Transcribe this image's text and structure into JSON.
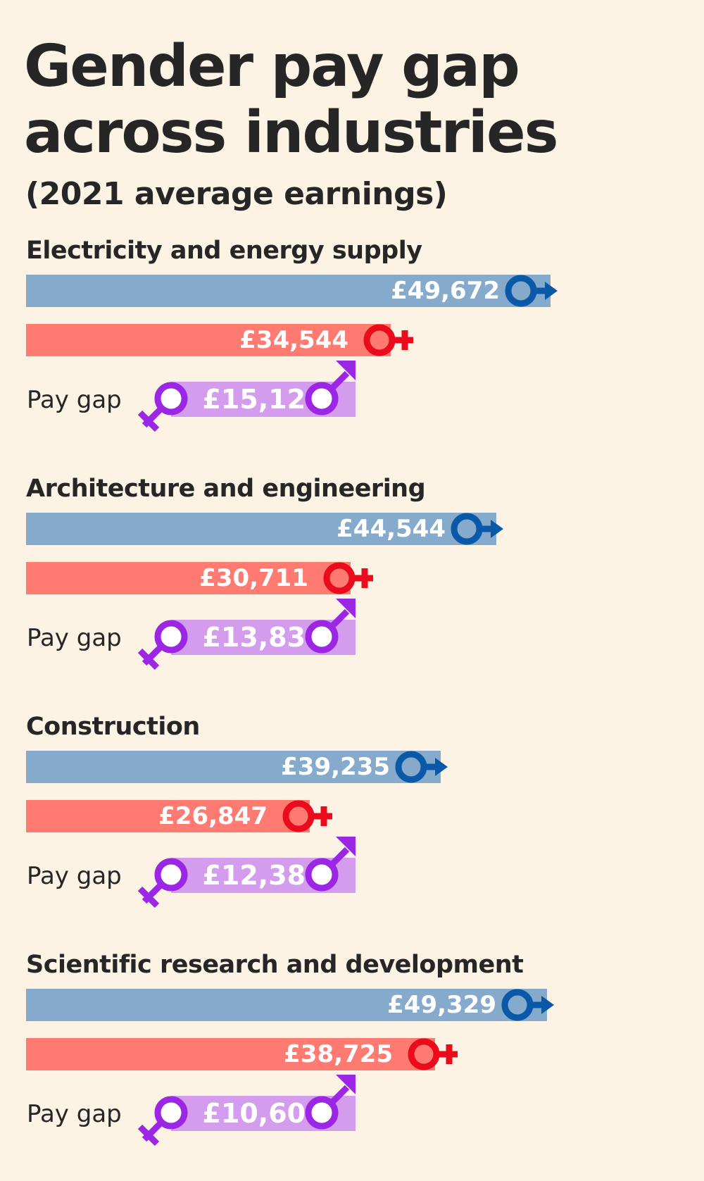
{
  "title": "Gender pay gap across industries",
  "subtitle": "(2021 average earnings)",
  "colors": {
    "male": "#85aacb",
    "male_symbol": "#0a58a8",
    "female": "#ff7b72",
    "female_symbol": "#ea0b1c",
    "gap": "#d39ced",
    "gap_symbol": "#9b26e3"
  },
  "icons": [
    "male-symbol-icon",
    "female-symbol-icon"
  ],
  "chart_data": {
    "type": "bar",
    "orientation": "horizontal",
    "title": "Gender pay gap across industries",
    "subtitle": "(2021 average earnings)",
    "unit": "£",
    "categories": [
      "Electricity and energy supply",
      "Architecture and engineering",
      "Construction",
      "Scientific research and development"
    ],
    "male": [
      49672,
      44544,
      39235,
      49329
    ],
    "female": [
      34544,
      30711,
      26847,
      38725
    ],
    "pay_gap": [
      15128,
      13833,
      12388,
      10604
    ],
    "pay_gap_label": "Pay gap",
    "male_labels": [
      "£49,672",
      "£44,544",
      "£39,235",
      "£49,329"
    ],
    "female_labels": [
      "£34,544",
      "£30,711",
      "£26,847",
      "£38,725"
    ],
    "pay_gap_labels": [
      "£15,128",
      "£13,833",
      "£12,388",
      "£10,604"
    ]
  }
}
